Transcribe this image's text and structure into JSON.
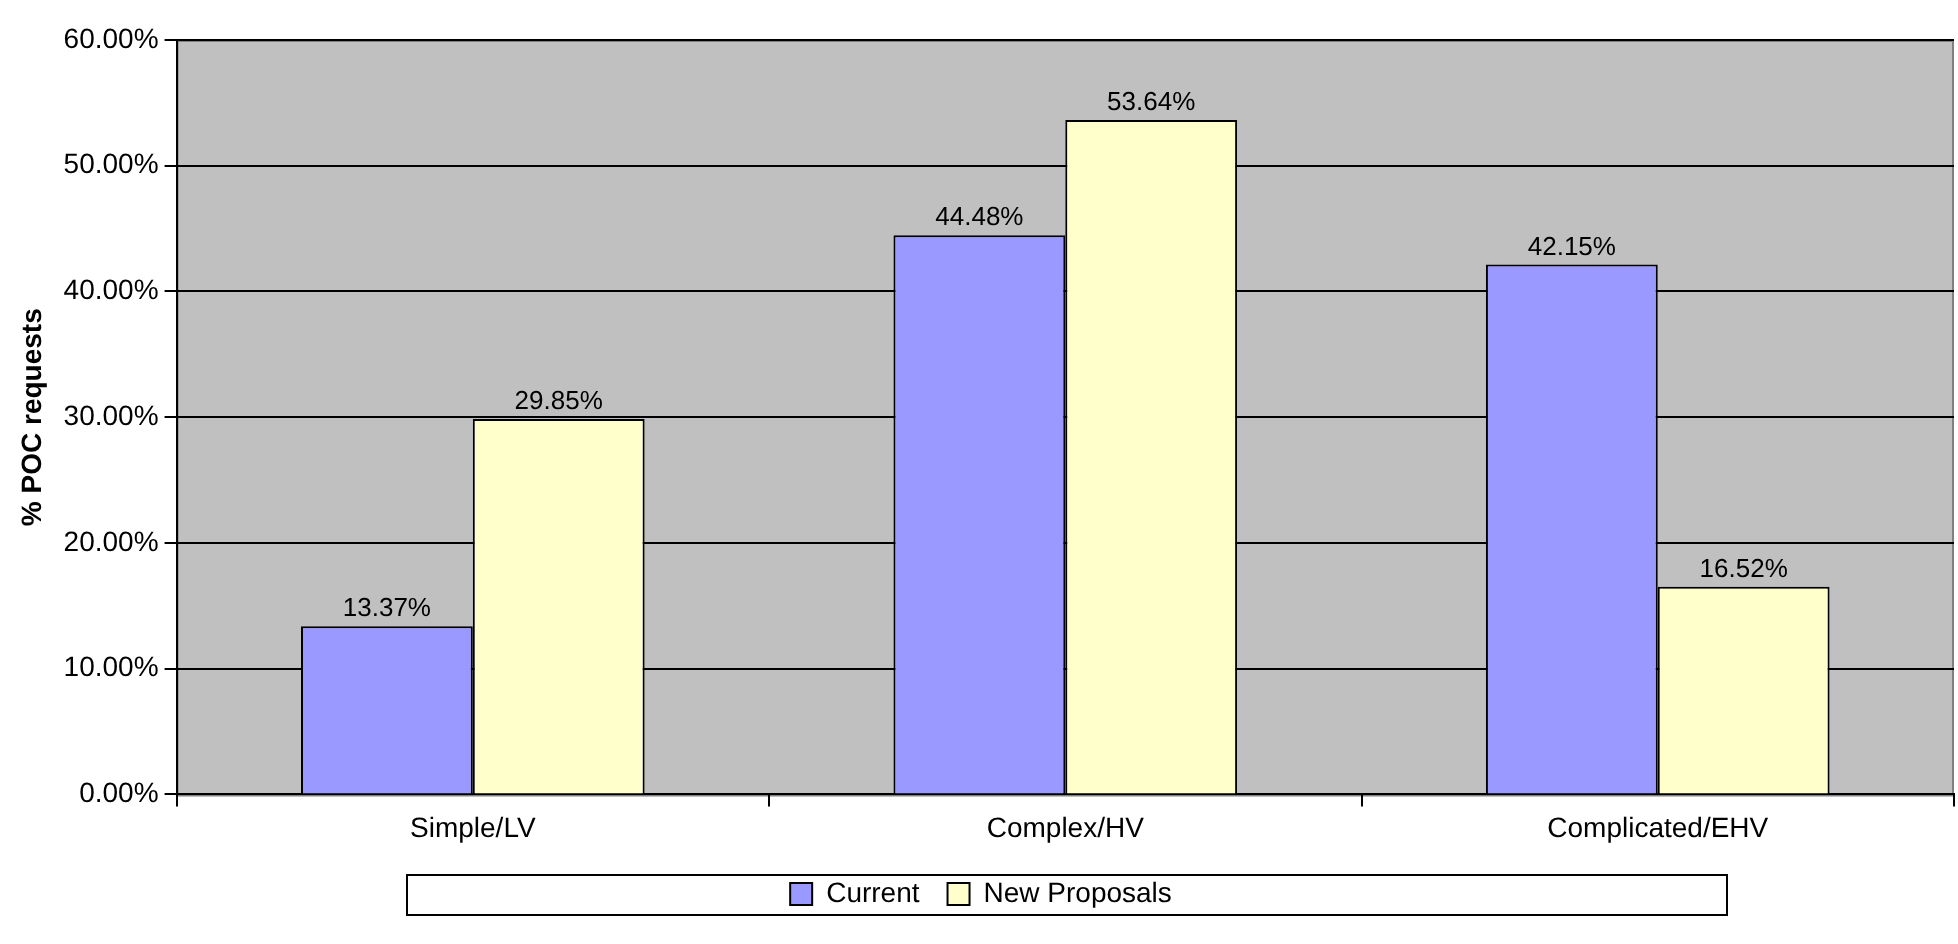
{
  "chart_data": {
    "type": "bar",
    "ylabel": "% POC requests",
    "categories": [
      "Simple/LV",
      "Complex/HV",
      "Complicated/EHV"
    ],
    "series": [
      {
        "name": "Current",
        "color": "#9999ff",
        "values": [
          13.37,
          44.48,
          42.15
        ],
        "value_labels": [
          "13.37%",
          "44.48%",
          "42.15%"
        ]
      },
      {
        "name": "New Proposals",
        "color": "#ffffcc",
        "values": [
          29.85,
          53.64,
          16.52
        ],
        "value_labels": [
          "29.85%",
          "53.64%",
          "16.52%"
        ]
      }
    ],
    "ylim": [
      0,
      60
    ],
    "yticks": [
      {
        "value": 0,
        "label": "0.00%"
      },
      {
        "value": 10,
        "label": "10.00%"
      },
      {
        "value": 20,
        "label": "20.00%"
      },
      {
        "value": 30,
        "label": "30.00%"
      },
      {
        "value": 40,
        "label": "40.00%"
      },
      {
        "value": 50,
        "label": "50.00%"
      },
      {
        "value": 60,
        "label": "60.00%"
      }
    ],
    "grid": "y",
    "legend": "bottom"
  }
}
